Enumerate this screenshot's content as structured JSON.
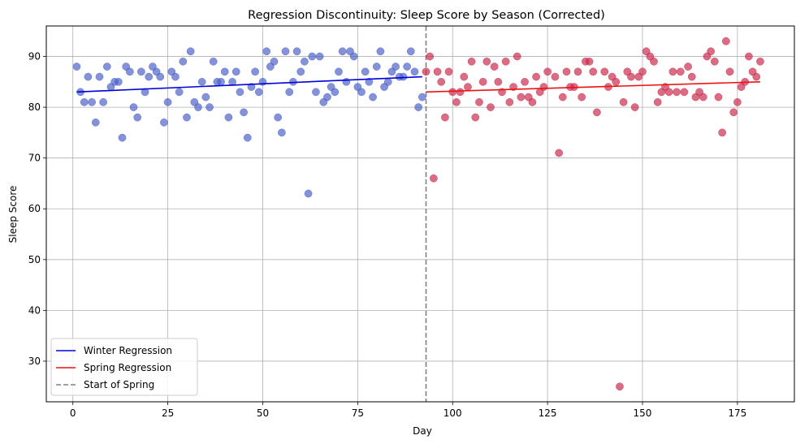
{
  "chart_data": {
    "type": "scatter",
    "title": "Regression Discontinuity: Sleep Score by Season (Corrected)",
    "xlabel": "Day",
    "ylabel": "Sleep Score",
    "xlim": [
      -7,
      190
    ],
    "ylim": [
      22,
      96
    ],
    "xticks": [
      0,
      25,
      50,
      75,
      100,
      125,
      150,
      175
    ],
    "yticks": [
      30,
      40,
      50,
      60,
      70,
      80,
      90
    ],
    "grid": true,
    "legend_position": "lower-left",
    "cutoff": {
      "x": 93,
      "label": "Start of Spring",
      "color": "#808080"
    },
    "series": [
      {
        "name": "Winter",
        "kind": "scatter",
        "color": "#4a5fc8",
        "points": [
          [
            1,
            88
          ],
          [
            2,
            83
          ],
          [
            3,
            81
          ],
          [
            4,
            86
          ],
          [
            5,
            81
          ],
          [
            6,
            77
          ],
          [
            7,
            86
          ],
          [
            8,
            81
          ],
          [
            9,
            88
          ],
          [
            10,
            84
          ],
          [
            11,
            85
          ],
          [
            12,
            85
          ],
          [
            13,
            74
          ],
          [
            14,
            88
          ],
          [
            15,
            87
          ],
          [
            16,
            80
          ],
          [
            17,
            78
          ],
          [
            18,
            87
          ],
          [
            19,
            83
          ],
          [
            20,
            86
          ],
          [
            21,
            88
          ],
          [
            22,
            87
          ],
          [
            23,
            86
          ],
          [
            24,
            77
          ],
          [
            25,
            81
          ],
          [
            26,
            87
          ],
          [
            27,
            86
          ],
          [
            28,
            83
          ],
          [
            29,
            89
          ],
          [
            30,
            78
          ],
          [
            31,
            91
          ],
          [
            32,
            81
          ],
          [
            33,
            80
          ],
          [
            34,
            85
          ],
          [
            35,
            82
          ],
          [
            36,
            80
          ],
          [
            37,
            89
          ],
          [
            38,
            85
          ],
          [
            39,
            85
          ],
          [
            40,
            87
          ],
          [
            41,
            78
          ],
          [
            42,
            85
          ],
          [
            43,
            87
          ],
          [
            44,
            83
          ],
          [
            45,
            79
          ],
          [
            46,
            74
          ],
          [
            47,
            84
          ],
          [
            48,
            87
          ],
          [
            49,
            83
          ],
          [
            50,
            85
          ],
          [
            51,
            91
          ],
          [
            52,
            88
          ],
          [
            53,
            89
          ],
          [
            54,
            78
          ],
          [
            55,
            75
          ],
          [
            56,
            91
          ],
          [
            57,
            83
          ],
          [
            58,
            85
          ],
          [
            59,
            91
          ],
          [
            60,
            87
          ],
          [
            61,
            89
          ],
          [
            62,
            63
          ],
          [
            63,
            90
          ],
          [
            64,
            83
          ],
          [
            65,
            90
          ],
          [
            66,
            81
          ],
          [
            67,
            82
          ],
          [
            68,
            84
          ],
          [
            69,
            83
          ],
          [
            70,
            87
          ],
          [
            71,
            91
          ],
          [
            72,
            85
          ],
          [
            73,
            91
          ],
          [
            74,
            90
          ],
          [
            75,
            84
          ],
          [
            76,
            83
          ],
          [
            77,
            87
          ],
          [
            78,
            85
          ],
          [
            79,
            82
          ],
          [
            80,
            88
          ],
          [
            81,
            91
          ],
          [
            82,
            84
          ],
          [
            83,
            85
          ],
          [
            84,
            87
          ],
          [
            85,
            88
          ],
          [
            86,
            86
          ],
          [
            87,
            86
          ],
          [
            88,
            88
          ],
          [
            89,
            91
          ],
          [
            90,
            87
          ],
          [
            91,
            80
          ],
          [
            92,
            82
          ]
        ]
      },
      {
        "name": "Spring",
        "kind": "scatter",
        "color": "#c8284a",
        "points": [
          [
            93,
            87
          ],
          [
            94,
            90
          ],
          [
            95,
            66
          ],
          [
            96,
            87
          ],
          [
            97,
            85
          ],
          [
            98,
            78
          ],
          [
            99,
            87
          ],
          [
            100,
            83
          ],
          [
            101,
            81
          ],
          [
            102,
            83
          ],
          [
            103,
            86
          ],
          [
            104,
            84
          ],
          [
            105,
            89
          ],
          [
            106,
            78
          ],
          [
            107,
            81
          ],
          [
            108,
            85
          ],
          [
            109,
            89
          ],
          [
            110,
            80
          ],
          [
            111,
            88
          ],
          [
            112,
            85
          ],
          [
            113,
            83
          ],
          [
            114,
            89
          ],
          [
            115,
            81
          ],
          [
            116,
            84
          ],
          [
            117,
            90
          ],
          [
            118,
            82
          ],
          [
            119,
            85
          ],
          [
            120,
            82
          ],
          [
            121,
            81
          ],
          [
            122,
            86
          ],
          [
            123,
            83
          ],
          [
            124,
            84
          ],
          [
            125,
            87
          ],
          [
            127,
            86
          ],
          [
            128,
            71
          ],
          [
            129,
            82
          ],
          [
            130,
            87
          ],
          [
            131,
            84
          ],
          [
            132,
            84
          ],
          [
            133,
            87
          ],
          [
            134,
            82
          ],
          [
            135,
            89
          ],
          [
            136,
            89
          ],
          [
            137,
            87
          ],
          [
            138,
            79
          ],
          [
            140,
            87
          ],
          [
            141,
            84
          ],
          [
            142,
            86
          ],
          [
            143,
            85
          ],
          [
            144,
            25
          ],
          [
            145,
            81
          ],
          [
            146,
            87
          ],
          [
            147,
            86
          ],
          [
            148,
            80
          ],
          [
            149,
            86
          ],
          [
            150,
            87
          ],
          [
            151,
            91
          ],
          [
            152,
            90
          ],
          [
            153,
            89
          ],
          [
            154,
            81
          ],
          [
            155,
            83
          ],
          [
            156,
            84
          ],
          [
            157,
            83
          ],
          [
            158,
            87
          ],
          [
            159,
            83
          ],
          [
            160,
            87
          ],
          [
            161,
            83
          ],
          [
            162,
            88
          ],
          [
            163,
            86
          ],
          [
            164,
            82
          ],
          [
            165,
            83
          ],
          [
            166,
            82
          ],
          [
            167,
            90
          ],
          [
            168,
            91
          ],
          [
            169,
            89
          ],
          [
            170,
            82
          ],
          [
            171,
            75
          ],
          [
            172,
            93
          ],
          [
            173,
            87
          ],
          [
            174,
            79
          ],
          [
            175,
            81
          ],
          [
            176,
            84
          ],
          [
            177,
            85
          ],
          [
            178,
            90
          ],
          [
            179,
            87
          ],
          [
            180,
            86
          ],
          [
            181,
            89
          ]
        ]
      }
    ],
    "regressions": [
      {
        "name": "Winter Regression",
        "color": "#0000dd",
        "x": [
          1,
          92
        ],
        "y": [
          83.0,
          86.0
        ]
      },
      {
        "name": "Spring Regression",
        "color": "#ee1111",
        "x": [
          93,
          181
        ],
        "y": [
          83.0,
          85.0
        ]
      }
    ],
    "legend": [
      {
        "label": "Winter Regression",
        "style": "solid",
        "color": "#0000dd"
      },
      {
        "label": "Spring Regression",
        "style": "solid",
        "color": "#ee1111"
      },
      {
        "label": "Start of Spring",
        "style": "dashed",
        "color": "#808080"
      }
    ]
  }
}
